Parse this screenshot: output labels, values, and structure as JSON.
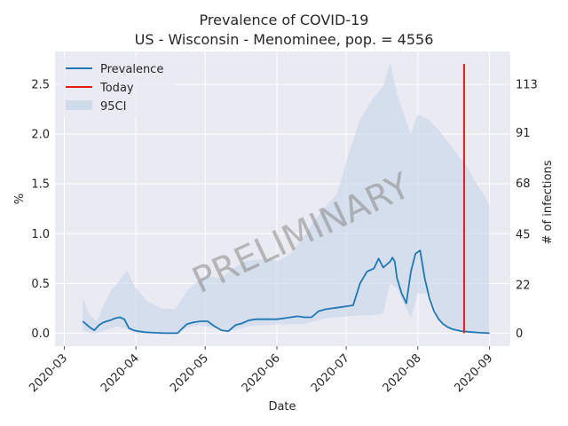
{
  "chart_data": {
    "type": "line",
    "title": "Prevalence of COVID-19",
    "subtitle": "US - Wisconsin - Menominee, pop. = 4556",
    "xlabel": "Date",
    "ylabel": "%",
    "ylabel_right": "# of infections",
    "xlim": [
      "2020-02-26",
      "2020-09-10"
    ],
    "ylim": [
      -0.13,
      2.83
    ],
    "x_ticks": [
      "2020-03",
      "2020-04",
      "2020-05",
      "2020-06",
      "2020-07",
      "2020-08",
      "2020-09"
    ],
    "x_tick_dates": [
      "2020-03-01",
      "2020-04-01",
      "2020-05-01",
      "2020-06-01",
      "2020-07-01",
      "2020-08-01",
      "2020-09-01"
    ],
    "y_ticks": [
      "0.0",
      "0.5",
      "1.0",
      "1.5",
      "2.0",
      "2.5"
    ],
    "y_tick_values": [
      0.0,
      0.5,
      1.0,
      1.5,
      2.0,
      2.5
    ],
    "y2_ticks": [
      "0",
      "22",
      "45",
      "68",
      "91",
      "113"
    ],
    "y2_tick_values": [
      0,
      22,
      45,
      68,
      91,
      113
    ],
    "grid": true,
    "legend_position": "top-left",
    "legend": [
      "Prevalence",
      "Today",
      "95CI"
    ],
    "watermark": "PRELIMINARY",
    "colors": {
      "prevalence": "#1f77b4",
      "today": "#e41a1c",
      "ci": "#c9d7e8",
      "grid": "#ffffff",
      "background": "#eaeaf2"
    },
    "today": "2020-08-21",
    "series": [
      {
        "name": "Prevalence",
        "x": [
          "2020-03-09",
          "2020-03-12",
          "2020-03-14",
          "2020-03-16",
          "2020-03-18",
          "2020-03-21",
          "2020-03-23",
          "2020-03-25",
          "2020-03-27",
          "2020-03-29",
          "2020-03-31",
          "2020-04-02",
          "2020-04-05",
          "2020-04-09",
          "2020-04-14",
          "2020-04-19",
          "2020-04-23",
          "2020-04-26",
          "2020-04-29",
          "2020-05-02",
          "2020-05-05",
          "2020-05-08",
          "2020-05-11",
          "2020-05-14",
          "2020-05-17",
          "2020-05-20",
          "2020-05-23",
          "2020-05-26",
          "2020-05-29",
          "2020-06-01",
          "2020-06-04",
          "2020-06-07",
          "2020-06-10",
          "2020-06-13",
          "2020-06-16",
          "2020-06-19",
          "2020-06-22",
          "2020-06-25",
          "2020-06-28",
          "2020-07-01",
          "2020-07-04",
          "2020-07-07",
          "2020-07-10",
          "2020-07-13",
          "2020-07-15",
          "2020-07-17",
          "2020-07-20",
          "2020-07-21",
          "2020-07-22",
          "2020-07-23",
          "2020-07-25",
          "2020-07-27",
          "2020-07-29",
          "2020-07-31",
          "2020-08-02",
          "2020-08-04",
          "2020-08-06",
          "2020-08-08",
          "2020-08-10",
          "2020-08-12",
          "2020-08-14",
          "2020-08-16",
          "2020-08-18",
          "2020-08-20",
          "2020-08-22",
          "2020-08-25",
          "2020-08-28",
          "2020-09-01"
        ],
        "values": [
          0.12,
          0.06,
          0.03,
          0.08,
          0.11,
          0.13,
          0.15,
          0.16,
          0.14,
          0.05,
          0.03,
          0.02,
          0.01,
          0.005,
          0.0,
          0.0,
          0.09,
          0.11,
          0.12,
          0.12,
          0.07,
          0.03,
          0.02,
          0.08,
          0.1,
          0.13,
          0.14,
          0.14,
          0.14,
          0.14,
          0.15,
          0.16,
          0.17,
          0.16,
          0.16,
          0.22,
          0.24,
          0.25,
          0.26,
          0.27,
          0.28,
          0.5,
          0.62,
          0.65,
          0.75,
          0.66,
          0.72,
          0.76,
          0.72,
          0.55,
          0.4,
          0.3,
          0.62,
          0.8,
          0.83,
          0.55,
          0.35,
          0.22,
          0.14,
          0.09,
          0.06,
          0.04,
          0.03,
          0.02,
          0.015,
          0.01,
          0.005,
          0.0
        ]
      },
      {
        "name": "95CI",
        "x": [
          "2020-03-09",
          "2020-03-12",
          "2020-03-15",
          "2020-03-18",
          "2020-03-21",
          "2020-03-24",
          "2020-03-28",
          "2020-04-01",
          "2020-04-06",
          "2020-04-12",
          "2020-04-18",
          "2020-04-23",
          "2020-04-28",
          "2020-05-03",
          "2020-05-08",
          "2020-05-13",
          "2020-05-18",
          "2020-05-23",
          "2020-05-28",
          "2020-06-02",
          "2020-06-07",
          "2020-06-12",
          "2020-06-17",
          "2020-06-22",
          "2020-06-27",
          "2020-07-02",
          "2020-07-07",
          "2020-07-12",
          "2020-07-17",
          "2020-07-20",
          "2020-07-23",
          "2020-07-26",
          "2020-07-29",
          "2020-08-01",
          "2020-08-06",
          "2020-08-10",
          "2020-08-14",
          "2020-08-18",
          "2020-08-22",
          "2020-08-26",
          "2020-08-30",
          "2020-09-01"
        ],
        "upper": [
          0.35,
          0.18,
          0.12,
          0.28,
          0.42,
          0.5,
          0.63,
          0.45,
          0.32,
          0.25,
          0.24,
          0.42,
          0.53,
          0.57,
          0.55,
          0.65,
          0.72,
          0.74,
          0.74,
          0.73,
          0.8,
          0.95,
          1.12,
          1.27,
          1.4,
          1.8,
          2.15,
          2.34,
          2.48,
          2.72,
          2.4,
          2.2,
          2.0,
          2.2,
          2.14,
          2.04,
          1.92,
          1.8,
          1.68,
          1.52,
          1.37,
          1.28
        ],
        "lower": [
          0.03,
          0.0,
          0.0,
          0.02,
          0.05,
          0.07,
          0.04,
          0.0,
          0.0,
          0.0,
          0.0,
          0.05,
          0.08,
          0.06,
          0.04,
          0.03,
          0.06,
          0.08,
          0.08,
          0.09,
          0.09,
          0.09,
          0.12,
          0.15,
          0.16,
          0.17,
          0.18,
          0.18,
          0.2,
          0.5,
          0.45,
          0.3,
          0.15,
          0.4,
          0.4,
          0.15,
          0.05,
          0.02,
          0.01,
          0.0,
          0.0,
          0.0
        ]
      }
    ]
  }
}
